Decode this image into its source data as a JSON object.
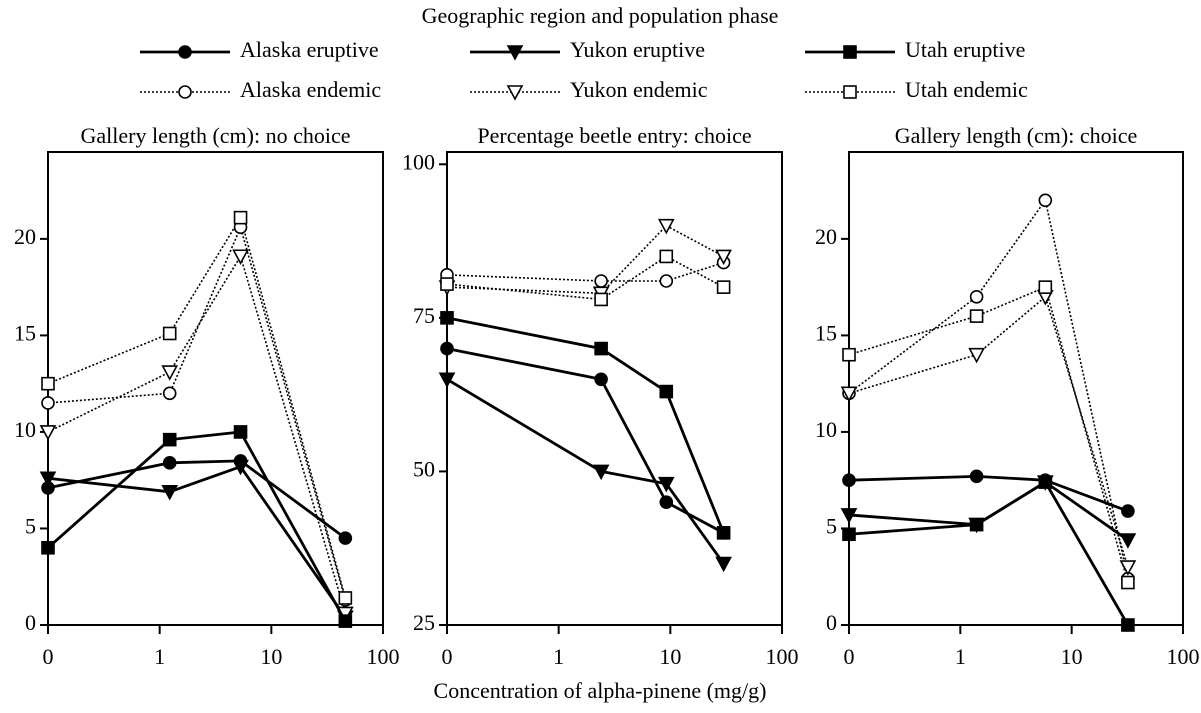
{
  "legend_title": "Geographic region and population phase",
  "xlabel": "Concentration of alpha-pinene (mg/g)",
  "chart_data": [
    {
      "type": "line",
      "title": "Gallery length (cm): no choice",
      "xscale": "log",
      "xlim": [
        0.1,
        100
      ],
      "xticks": [
        {
          "value": 0.1,
          "label": "0"
        },
        1,
        10,
        100
      ],
      "ylim": [
        0,
        24.5
      ],
      "yticks": [
        0,
        5,
        10,
        15,
        20
      ],
      "x": [
        0.1,
        1.23,
        5.3,
        46
      ],
      "series": [
        {
          "name": "Alaska eruptive",
          "color": "#000000",
          "marker": "circle",
          "filled": true,
          "dashed": false,
          "values": [
            7.1,
            8.4,
            8.5,
            4.5
          ]
        },
        {
          "name": "Alaska endemic",
          "color": "#000000",
          "marker": "circle",
          "filled": false,
          "dashed": true,
          "values": [
            11.5,
            12.0,
            20.6,
            1.3
          ]
        },
        {
          "name": "Yukon eruptive",
          "color": "#000000",
          "marker": "triangle",
          "filled": true,
          "dashed": false,
          "values": [
            7.6,
            6.9,
            8.2,
            0.4
          ]
        },
        {
          "name": "Yukon endemic",
          "color": "#000000",
          "marker": "triangle",
          "filled": false,
          "dashed": true,
          "values": [
            10.0,
            13.1,
            19.1,
            0.6
          ]
        },
        {
          "name": "Utah eruptive",
          "color": "#000000",
          "marker": "square",
          "filled": true,
          "dashed": false,
          "values": [
            4.0,
            9.6,
            10.0,
            0.2
          ]
        },
        {
          "name": "Utah endemic",
          "color": "#000000",
          "marker": "square",
          "filled": false,
          "dashed": true,
          "values": [
            12.5,
            15.1,
            21.1,
            1.4
          ]
        }
      ]
    },
    {
      "type": "line",
      "title": "Percentage beetle entry: choice",
      "xscale": "log",
      "xlim": [
        0.1,
        100
      ],
      "xticks": [
        {
          "value": 0.1,
          "label": "0"
        },
        1,
        10,
        100
      ],
      "ylim": [
        25,
        102
      ],
      "yticks": [
        25,
        50,
        75,
        100
      ],
      "x": [
        0.1,
        2.4,
        9.2,
        30
      ],
      "series": [
        {
          "name": "Alaska eruptive",
          "color": "#000000",
          "marker": "circle",
          "filled": true,
          "dashed": false,
          "values": [
            70,
            65,
            45,
            40
          ]
        },
        {
          "name": "Alaska endemic",
          "color": "#000000",
          "marker": "circle",
          "filled": false,
          "dashed": true,
          "values": [
            82,
            81,
            81,
            84
          ]
        },
        {
          "name": "Yukon eruptive",
          "color": "#000000",
          "marker": "triangle",
          "filled": true,
          "dashed": false,
          "values": [
            65,
            50,
            48,
            35
          ]
        },
        {
          "name": "Yukon endemic",
          "color": "#000000",
          "marker": "triangle",
          "filled": false,
          "dashed": true,
          "values": [
            80,
            79,
            90,
            85
          ]
        },
        {
          "name": "Utah eruptive",
          "color": "#000000",
          "marker": "square",
          "filled": true,
          "dashed": false,
          "values": [
            75,
            70,
            63,
            40
          ]
        },
        {
          "name": "Utah endemic",
          "color": "#000000",
          "marker": "square",
          "filled": false,
          "dashed": true,
          "values": [
            80.5,
            78,
            85,
            80
          ]
        }
      ]
    },
    {
      "type": "line",
      "title": "Gallery length (cm): choice",
      "xscale": "log",
      "xlim": [
        0.1,
        100
      ],
      "xticks": [
        {
          "value": 0.1,
          "label": "0"
        },
        1,
        10,
        100
      ],
      "ylim": [
        0,
        24.5
      ],
      "yticks": [
        0,
        5,
        10,
        15,
        20
      ],
      "x": [
        0.1,
        1.4,
        5.8,
        32
      ],
      "series": [
        {
          "name": "Alaska eruptive",
          "color": "#000000",
          "marker": "circle",
          "filled": true,
          "dashed": false,
          "values": [
            7.5,
            7.7,
            7.5,
            5.9
          ]
        },
        {
          "name": "Alaska endemic",
          "color": "#000000",
          "marker": "circle",
          "filled": false,
          "dashed": true,
          "values": [
            12,
            17,
            22,
            2.4
          ]
        },
        {
          "name": "Yukon eruptive",
          "color": "#000000",
          "marker": "triangle",
          "filled": true,
          "dashed": false,
          "values": [
            5.7,
            5.2,
            7.4,
            4.4
          ]
        },
        {
          "name": "Yukon endemic",
          "color": "#000000",
          "marker": "triangle",
          "filled": false,
          "dashed": true,
          "values": [
            12,
            14,
            17,
            3
          ]
        },
        {
          "name": "Utah eruptive",
          "color": "#000000",
          "marker": "square",
          "filled": true,
          "dashed": false,
          "values": [
            4.7,
            5.2,
            7.4,
            0
          ]
        },
        {
          "name": "Utah endemic",
          "color": "#000000",
          "marker": "square",
          "filled": false,
          "dashed": true,
          "values": [
            14,
            16,
            17.5,
            2.2
          ]
        }
      ]
    }
  ]
}
